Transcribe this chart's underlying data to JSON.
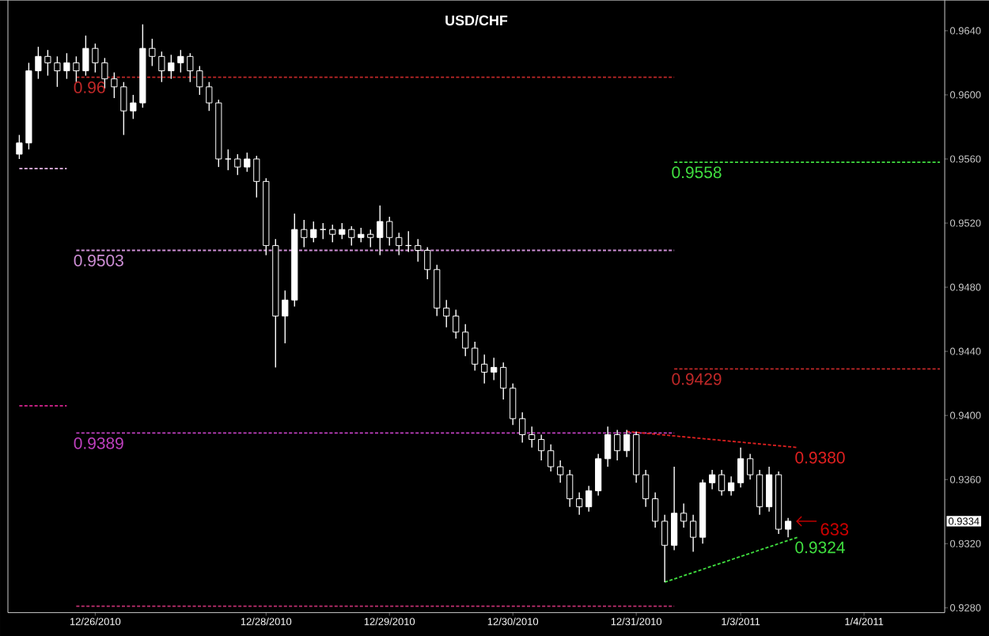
{
  "chart_data": {
    "type": "candlestick",
    "title": "USD/CHF",
    "color": "#ffffff",
    "categories": [
      null,
      null,
      null,
      null,
      null,
      null,
      null,
      null,
      "12/26/2010",
      null,
      null,
      null,
      null,
      null,
      null,
      null,
      null,
      null,
      null,
      null,
      null,
      null,
      null,
      null,
      null,
      null,
      "12/28/2010",
      null,
      null,
      null,
      null,
      null,
      null,
      null,
      null,
      null,
      null,
      null,
      null,
      "12/29/2010",
      null,
      null,
      null,
      null,
      null,
      null,
      null,
      null,
      null,
      null,
      null,
      null,
      "12/30/2010",
      null,
      null,
      null,
      null,
      null,
      null,
      null,
      null,
      null,
      null,
      null,
      null,
      "12/31/2010",
      null,
      null,
      null,
      null,
      null,
      null,
      null,
      null,
      null,
      null,
      "1/3/2011",
      null,
      null,
      null,
      null,
      null,
      null,
      null,
      null,
      null,
      null,
      null,
      null,
      "1/4/2011",
      null,
      null,
      null,
      null,
      null,
      null,
      null,
      null
    ],
    "ohlc": [
      [
        0.9563,
        0.9575,
        0.956,
        0.957
      ],
      [
        0.957,
        0.962,
        0.9566,
        0.9615
      ],
      [
        0.9615,
        0.963,
        0.961,
        0.9624
      ],
      [
        0.9624,
        0.9628,
        0.9612,
        0.962
      ],
      [
        0.962,
        0.9624,
        0.9605,
        0.9615
      ],
      [
        0.9615,
        0.9626,
        0.961,
        0.962
      ],
      [
        0.962,
        0.9624,
        0.9608,
        0.9615
      ],
      [
        0.9615,
        0.9637,
        0.9612,
        0.9629
      ],
      [
        0.9629,
        0.9632,
        0.9614,
        0.962
      ],
      [
        0.962,
        0.9623,
        0.9604,
        0.961
      ],
      [
        0.961,
        0.9614,
        0.9598,
        0.9605
      ],
      [
        0.9605,
        0.9608,
        0.9575,
        0.959
      ],
      [
        0.959,
        0.96,
        0.9585,
        0.9595
      ],
      [
        0.9595,
        0.9644,
        0.9592,
        0.9629
      ],
      [
        0.9629,
        0.9635,
        0.9618,
        0.9624
      ],
      [
        0.9624,
        0.9627,
        0.9608,
        0.9615
      ],
      [
        0.9615,
        0.9625,
        0.961,
        0.962
      ],
      [
        0.962,
        0.9628,
        0.9614,
        0.9624
      ],
      [
        0.9624,
        0.9626,
        0.9608,
        0.9615
      ],
      [
        0.9615,
        0.9618,
        0.96,
        0.9605
      ],
      [
        0.9605,
        0.9608,
        0.959,
        0.9595
      ],
      [
        0.9595,
        0.9597,
        0.9555,
        0.956
      ],
      [
        0.956,
        0.9566,
        0.9553,
        0.956
      ],
      [
        0.956,
        0.9563,
        0.955,
        0.9555
      ],
      [
        0.9555,
        0.9564,
        0.9552,
        0.956
      ],
      [
        0.956,
        0.9562,
        0.9536,
        0.9546
      ],
      [
        0.9546,
        0.9548,
        0.95,
        0.9506
      ],
      [
        0.9506,
        0.951,
        0.943,
        0.9462
      ],
      [
        0.9462,
        0.9478,
        0.9445,
        0.9472
      ],
      [
        0.9472,
        0.9526,
        0.9468,
        0.9516
      ],
      [
        0.9516,
        0.9522,
        0.9505,
        0.9511
      ],
      [
        0.9511,
        0.9521,
        0.9508,
        0.9516
      ],
      [
        0.9516,
        0.952,
        0.951,
        0.9516
      ],
      [
        0.9516,
        0.9519,
        0.9508,
        0.9513
      ],
      [
        0.9513,
        0.952,
        0.951,
        0.9516
      ],
      [
        0.9516,
        0.9518,
        0.9506,
        0.9511
      ],
      [
        0.9511,
        0.9517,
        0.9508,
        0.9513
      ],
      [
        0.9513,
        0.9516,
        0.9505,
        0.9511
      ],
      [
        0.9511,
        0.9531,
        0.95,
        0.9521
      ],
      [
        0.9521,
        0.9524,
        0.9506,
        0.9511
      ],
      [
        0.9511,
        0.9514,
        0.95,
        0.9506
      ],
      [
        0.9506,
        0.9515,
        0.9502,
        0.9506
      ],
      [
        0.9506,
        0.951,
        0.9496,
        0.9503
      ],
      [
        0.9503,
        0.9505,
        0.9485,
        0.9491
      ],
      [
        0.9491,
        0.9494,
        0.9462,
        0.9467
      ],
      [
        0.9467,
        0.9472,
        0.9455,
        0.9462
      ],
      [
        0.9462,
        0.9466,
        0.9448,
        0.9452
      ],
      [
        0.9452,
        0.9457,
        0.9437,
        0.9442
      ],
      [
        0.9442,
        0.9446,
        0.9428,
        0.9432
      ],
      [
        0.9432,
        0.9438,
        0.942,
        0.9427
      ],
      [
        0.9427,
        0.9436,
        0.9422,
        0.943
      ],
      [
        0.943,
        0.9433,
        0.941,
        0.9417
      ],
      [
        0.9417,
        0.942,
        0.9394,
        0.9398
      ],
      [
        0.9398,
        0.9402,
        0.9383,
        0.9388
      ],
      [
        0.9388,
        0.9393,
        0.938,
        0.9385
      ],
      [
        0.9385,
        0.9388,
        0.9372,
        0.9378
      ],
      [
        0.9378,
        0.9382,
        0.9365,
        0.9368
      ],
      [
        0.9368,
        0.9372,
        0.9358,
        0.9363
      ],
      [
        0.9363,
        0.9366,
        0.9343,
        0.9348
      ],
      [
        0.9348,
        0.9352,
        0.9338,
        0.9343
      ],
      [
        0.9343,
        0.9356,
        0.934,
        0.9353
      ],
      [
        0.9353,
        0.9376,
        0.935,
        0.9373
      ],
      [
        0.9373,
        0.9393,
        0.9368,
        0.9388
      ],
      [
        0.9388,
        0.9391,
        0.9372,
        0.9378
      ],
      [
        0.9378,
        0.9391,
        0.9374,
        0.9388
      ],
      [
        0.9388,
        0.939,
        0.9358,
        0.9363
      ],
      [
        0.9363,
        0.9366,
        0.9343,
        0.9348
      ],
      [
        0.9348,
        0.9352,
        0.933,
        0.9334
      ],
      [
        0.9334,
        0.9338,
        0.9296,
        0.9319
      ],
      [
        0.9319,
        0.9368,
        0.9316,
        0.9339
      ],
      [
        0.9339,
        0.9345,
        0.933,
        0.9334
      ],
      [
        0.9334,
        0.9338,
        0.9315,
        0.9324
      ],
      [
        0.9324,
        0.936,
        0.932,
        0.9358
      ],
      [
        0.9358,
        0.9366,
        0.9354,
        0.9363
      ],
      [
        0.9363,
        0.9366,
        0.935,
        0.9353
      ],
      [
        0.9353,
        0.9362,
        0.935,
        0.9358
      ],
      [
        0.9358,
        0.938,
        0.9355,
        0.9373
      ],
      [
        0.9373,
        0.9376,
        0.936,
        0.9363
      ],
      [
        0.9363,
        0.9366,
        0.9338,
        0.9343
      ],
      [
        0.9343,
        0.9368,
        0.934,
        0.9363
      ],
      [
        0.9363,
        0.9365,
        0.9326,
        0.9329
      ],
      [
        0.9329,
        0.9336,
        0.9324,
        0.9334
      ],
      null,
      null,
      null,
      null,
      null,
      null,
      null,
      null,
      null,
      null,
      null,
      null,
      null,
      null,
      null,
      null
    ],
    "series": [
      {
        "type": "line",
        "values": [
          0.9554,
          null,
          null,
          null,
          null,
          0.9554,
          null,
          null,
          null,
          null,
          null,
          null,
          null,
          null,
          null,
          null,
          null,
          null,
          null,
          null,
          null,
          null,
          null,
          null,
          null,
          null,
          null,
          null,
          null,
          null,
          null,
          null,
          null,
          null,
          null,
          null,
          null,
          null,
          null,
          null,
          null,
          null,
          null,
          null,
          null,
          null,
          null,
          null,
          null,
          null,
          null,
          null,
          null,
          null,
          null,
          null,
          null,
          null,
          null,
          null,
          null,
          null,
          null,
          null,
          null,
          null,
          null,
          null,
          null,
          null,
          null,
          null,
          null,
          null,
          null,
          null,
          null,
          null,
          null,
          null,
          null,
          null,
          null,
          null,
          null,
          null,
          null,
          null,
          null,
          null,
          null,
          null,
          null,
          null,
          null,
          null,
          null,
          null
        ],
        "color": "#e8b8e8",
        "line_style": "dashed"
      },
      {
        "type": "line",
        "values": [
          0.9406,
          null,
          null,
          null,
          null,
          0.9406,
          null,
          null,
          null,
          null,
          null,
          null,
          null,
          null,
          null,
          null,
          null,
          null,
          null,
          null,
          null,
          null,
          null,
          null,
          null,
          null,
          null,
          null,
          null,
          null,
          null,
          null,
          null,
          null,
          null,
          null,
          null,
          null,
          null,
          null,
          null,
          null,
          null,
          null,
          null,
          null,
          null,
          null,
          null,
          null,
          null,
          null,
          null,
          null,
          null,
          null,
          null,
          null,
          null,
          null,
          null,
          null,
          null,
          null,
          null,
          null,
          null,
          null,
          null,
          null,
          null,
          null,
          null,
          null,
          null,
          null,
          null,
          null,
          null,
          null,
          null,
          null,
          null,
          null,
          null,
          null,
          null,
          null,
          null,
          null,
          null,
          null,
          null,
          null,
          null,
          null,
          null,
          null
        ],
        "color": "#c02080",
        "line_style": "dashed"
      },
      {
        "name": "0.96",
        "type": "line",
        "values": [
          null,
          null,
          null,
          null,
          null,
          null,
          0.9611,
          null,
          null,
          null,
          null,
          null,
          null,
          null,
          null,
          null,
          null,
          null,
          null,
          null,
          null,
          null,
          null,
          null,
          null,
          null,
          null,
          null,
          null,
          null,
          null,
          null,
          null,
          null,
          null,
          null,
          null,
          null,
          null,
          null,
          null,
          null,
          null,
          null,
          null,
          null,
          null,
          null,
          null,
          null,
          null,
          null,
          null,
          null,
          null,
          null,
          null,
          null,
          null,
          null,
          null,
          null,
          null,
          null,
          null,
          null,
          null,
          null,
          null,
          0.9611,
          null,
          null,
          null,
          null,
          null,
          null,
          null,
          null,
          null,
          null,
          null,
          null,
          null,
          null,
          null,
          null,
          null,
          null,
          null,
          null,
          null,
          null,
          null,
          null,
          null,
          null,
          null,
          null
        ],
        "color": "#c02828",
        "line_style": "dashed"
      },
      {
        "name": "0.9503",
        "type": "line",
        "values": [
          null,
          null,
          null,
          null,
          null,
          null,
          0.9503,
          null,
          null,
          null,
          null,
          null,
          null,
          null,
          null,
          null,
          null,
          null,
          null,
          null,
          null,
          null,
          null,
          null,
          null,
          null,
          null,
          null,
          null,
          null,
          null,
          null,
          null,
          null,
          null,
          null,
          null,
          null,
          null,
          null,
          null,
          null,
          null,
          null,
          null,
          null,
          null,
          null,
          null,
          null,
          null,
          null,
          null,
          null,
          null,
          null,
          null,
          null,
          null,
          null,
          null,
          null,
          null,
          null,
          null,
          null,
          null,
          null,
          null,
          0.9503,
          null,
          null,
          null,
          null,
          null,
          null,
          null,
          null,
          null,
          null,
          null,
          null,
          null,
          null,
          null,
          null,
          null,
          null,
          null,
          null,
          null,
          null,
          null,
          null,
          null,
          null,
          null,
          null
        ],
        "color": "#d090d8",
        "line_style": "dashed"
      },
      {
        "name": "0.9389",
        "type": "line",
        "values": [
          null,
          null,
          null,
          null,
          null,
          null,
          0.9389,
          null,
          null,
          null,
          null,
          null,
          null,
          null,
          null,
          null,
          null,
          null,
          null,
          null,
          null,
          null,
          null,
          null,
          null,
          null,
          null,
          null,
          null,
          null,
          null,
          null,
          null,
          null,
          null,
          null,
          null,
          null,
          null,
          null,
          null,
          null,
          null,
          null,
          null,
          null,
          null,
          null,
          null,
          null,
          null,
          null,
          null,
          null,
          null,
          null,
          null,
          null,
          null,
          null,
          null,
          null,
          null,
          null,
          null,
          null,
          null,
          null,
          null,
          0.9389,
          null,
          null,
          null,
          null,
          null,
          null,
          null,
          null,
          null,
          null,
          null,
          null,
          null,
          null,
          null,
          null,
          null,
          null,
          null,
          null,
          null,
          null,
          null,
          null,
          null,
          null,
          null,
          null
        ],
        "color": "#c040c0",
        "line_style": "dashed"
      },
      {
        "type": "line",
        "values": [
          null,
          null,
          null,
          null,
          null,
          null,
          0.9281,
          null,
          null,
          null,
          null,
          null,
          null,
          null,
          null,
          null,
          null,
          null,
          null,
          null,
          null,
          null,
          null,
          null,
          null,
          null,
          null,
          null,
          null,
          null,
          null,
          null,
          null,
          null,
          null,
          null,
          null,
          null,
          null,
          null,
          null,
          null,
          null,
          null,
          null,
          null,
          null,
          null,
          null,
          null,
          null,
          null,
          null,
          null,
          null,
          null,
          null,
          null,
          null,
          null,
          null,
          null,
          null,
          null,
          null,
          null,
          null,
          null,
          null,
          0.9281,
          null,
          null,
          null,
          null,
          null,
          null,
          null,
          null,
          null,
          null,
          null,
          null,
          null,
          null,
          null,
          null,
          null,
          null,
          null,
          null,
          null,
          null,
          null,
          null,
          null,
          null,
          null,
          null
        ],
        "color": "#c03070",
        "line_style": "dashed"
      },
      {
        "name": "0.9558",
        "type": "line",
        "values": [
          null,
          null,
          null,
          null,
          null,
          null,
          null,
          null,
          null,
          null,
          null,
          null,
          null,
          null,
          null,
          null,
          null,
          null,
          null,
          null,
          null,
          null,
          null,
          null,
          null,
          null,
          null,
          null,
          null,
          null,
          null,
          null,
          null,
          null,
          null,
          null,
          null,
          null,
          null,
          null,
          null,
          null,
          null,
          null,
          null,
          null,
          null,
          null,
          null,
          null,
          null,
          null,
          null,
          null,
          null,
          null,
          null,
          null,
          null,
          null,
          null,
          null,
          null,
          null,
          null,
          null,
          null,
          null,
          null,
          0.9558,
          null,
          null,
          null,
          null,
          null,
          null,
          null,
          null,
          null,
          null,
          null,
          null,
          null,
          null,
          null,
          null,
          null,
          null,
          null,
          null,
          null,
          null,
          null,
          null,
          null,
          null,
          null,
          0.9558
        ],
        "color": "#40e040",
        "line_style": "dashed"
      },
      {
        "name": "0.9429",
        "type": "line",
        "values": [
          null,
          null,
          null,
          null,
          null,
          null,
          null,
          null,
          null,
          null,
          null,
          null,
          null,
          null,
          null,
          null,
          null,
          null,
          null,
          null,
          null,
          null,
          null,
          null,
          null,
          null,
          null,
          null,
          null,
          null,
          null,
          null,
          null,
          null,
          null,
          null,
          null,
          null,
          null,
          null,
          null,
          null,
          null,
          null,
          null,
          null,
          null,
          null,
          null,
          null,
          null,
          null,
          null,
          null,
          null,
          null,
          null,
          null,
          null,
          null,
          null,
          null,
          null,
          null,
          null,
          null,
          null,
          null,
          null,
          0.9429,
          null,
          null,
          null,
          null,
          null,
          null,
          null,
          null,
          null,
          null,
          null,
          null,
          null,
          null,
          null,
          null,
          null,
          null,
          null,
          null,
          null,
          null,
          null,
          null,
          null,
          null,
          null,
          0.9429
        ],
        "color": "#c02828",
        "line_style": "dashed"
      },
      {
        "name": "0.9380",
        "type": "line",
        "values": [
          null,
          null,
          null,
          null,
          null,
          null,
          null,
          null,
          null,
          null,
          null,
          null,
          null,
          null,
          null,
          null,
          null,
          null,
          null,
          null,
          null,
          null,
          null,
          null,
          null,
          null,
          null,
          null,
          null,
          null,
          null,
          null,
          null,
          null,
          null,
          null,
          null,
          null,
          null,
          null,
          null,
          null,
          null,
          null,
          null,
          null,
          null,
          null,
          null,
          null,
          null,
          null,
          null,
          null,
          null,
          null,
          null,
          null,
          null,
          null,
          null,
          null,
          null,
          null,
          0.939,
          null,
          null,
          null,
          null,
          null,
          null,
          null,
          null,
          null,
          null,
          null,
          null,
          null,
          null,
          null,
          null,
          null,
          0.938,
          null,
          null,
          null,
          null,
          null,
          null,
          null,
          null,
          null,
          null,
          null,
          null,
          null,
          null,
          null
        ],
        "color": "#e02020",
        "line_style": "dashed"
      },
      {
        "name": "0.9324",
        "type": "line",
        "values": [
          null,
          null,
          null,
          null,
          null,
          null,
          null,
          null,
          null,
          null,
          null,
          null,
          null,
          null,
          null,
          null,
          null,
          null,
          null,
          null,
          null,
          null,
          null,
          null,
          null,
          null,
          null,
          null,
          null,
          null,
          null,
          null,
          null,
          null,
          null,
          null,
          null,
          null,
          null,
          null,
          null,
          null,
          null,
          null,
          null,
          null,
          null,
          null,
          null,
          null,
          null,
          null,
          null,
          null,
          null,
          null,
          null,
          null,
          null,
          null,
          null,
          null,
          null,
          null,
          null,
          null,
          null,
          null,
          0.9296,
          null,
          null,
          null,
          null,
          null,
          null,
          null,
          null,
          null,
          null,
          null,
          null,
          null,
          0.9324,
          null,
          null,
          null,
          null,
          null,
          null,
          null,
          null,
          null,
          null,
          null,
          null,
          null,
          null,
          null
        ],
        "color": "#40e040",
        "line_style": "dashed"
      }
    ],
    "annotations": [
      "633",
      {
        "text": "0.9334",
        "y": 0.9334
      }
    ],
    "ylim": [
      0.9277,
      0.9659
    ],
    "yticks": [
      {
        "value": 0.964,
        "label": "0.9640"
      },
      {
        "value": 0.96,
        "label": "0.9600"
      },
      {
        "value": 0.956,
        "label": "0.9560"
      },
      {
        "value": 0.952,
        "label": "0.9520"
      },
      {
        "value": 0.948,
        "label": "0.9480"
      },
      {
        "value": 0.944,
        "label": "0.9440"
      },
      {
        "value": 0.94,
        "label": "0.9400"
      },
      {
        "value": 0.936,
        "label": "0.9360"
      },
      {
        "value": 0.932,
        "label": "0.9320"
      },
      {
        "value": 0.928,
        "label": "0.9280"
      }
    ]
  }
}
